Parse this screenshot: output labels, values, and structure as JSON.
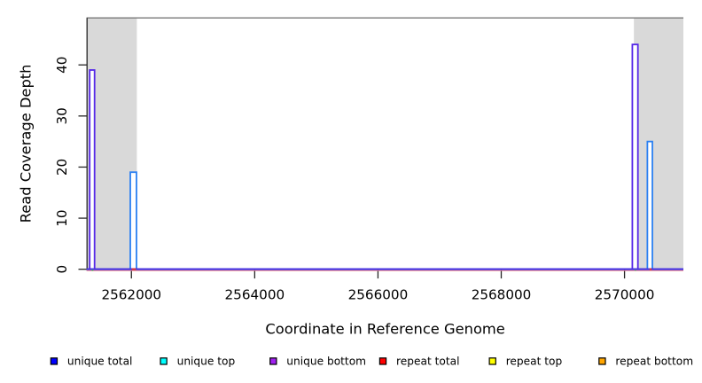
{
  "figure": {
    "kind": "genome read coverage plot",
    "background": "#ffffff"
  },
  "chart_data": {
    "type": "bar",
    "title": "",
    "xlabel": "Coordinate in Reference Genome",
    "ylabel": "Read Coverage Depth",
    "xlim": [
      2561280,
      2570955
    ],
    "ylim": [
      0,
      49.2
    ],
    "xticks": [
      2562000,
      2564000,
      2566000,
      2568000,
      2570000
    ],
    "xtick_labels": [
      "2562000",
      "2564000",
      "2566000",
      "2568000",
      "2570000"
    ],
    "yticks": [
      0,
      10,
      20,
      30,
      40
    ],
    "ytick_labels": [
      "0",
      "10",
      "20",
      "30",
      "40"
    ],
    "grid": false,
    "shaded_regions": [
      {
        "x1": 2561280,
        "x2": 2562088,
        "color": "#d9d9d9"
      },
      {
        "x1": 2570152,
        "x2": 2570955,
        "color": "#d9d9d9"
      }
    ],
    "top_border_line": {
      "y": 49.2,
      "color": "#787878"
    },
    "bars": [
      {
        "x1": 2561323,
        "x2": 2561402,
        "height": 39,
        "series": "unique bottom",
        "stroke": "#5527e8",
        "fill": "#ffffff"
      },
      {
        "x1": 2561982,
        "x2": 2562082,
        "height": 19,
        "series": "unique top",
        "stroke": "#2b80f2",
        "fill": "#ffffff"
      },
      {
        "x1": 2570127,
        "x2": 2570217,
        "height": 44,
        "series": "unique bottom",
        "stroke": "#5527e8",
        "fill": "#ffffff"
      },
      {
        "x1": 2570371,
        "x2": 2570452,
        "height": 25,
        "series": "unique top",
        "stroke": "#2b80f2",
        "fill": "#ffffff"
      }
    ],
    "baseline": {
      "main_color": "#4836e2",
      "fringe_color": "#ee8282",
      "marks": [
        {
          "x1": 2561356,
          "x2": 2561382,
          "color": "#34be4e",
          "offset": 1.2
        },
        {
          "x1": 2562006,
          "x2": 2562074,
          "color": "#de2a2a",
          "offset": 0
        },
        {
          "x1": 2570169,
          "x2": 2570185,
          "color": "#34be4e",
          "offset": 1.2
        },
        {
          "x1": 2570406,
          "x2": 2570440,
          "color": "#de2a2a",
          "offset": 0
        }
      ]
    },
    "legend": {
      "position": "bottom",
      "entries": [
        {
          "label": "unique total",
          "color": "#0000ff"
        },
        {
          "label": "unique top",
          "color": "#00ffff"
        },
        {
          "label": "unique bottom",
          "color": "#a020f0"
        },
        {
          "label": "repeat total",
          "color": "#ff0000"
        },
        {
          "label": "repeat top",
          "color": "#ffff00"
        },
        {
          "label": "repeat bottom",
          "color": "#ffa500"
        }
      ],
      "swatch_border": "#000000"
    },
    "axis_color": "#262626"
  }
}
